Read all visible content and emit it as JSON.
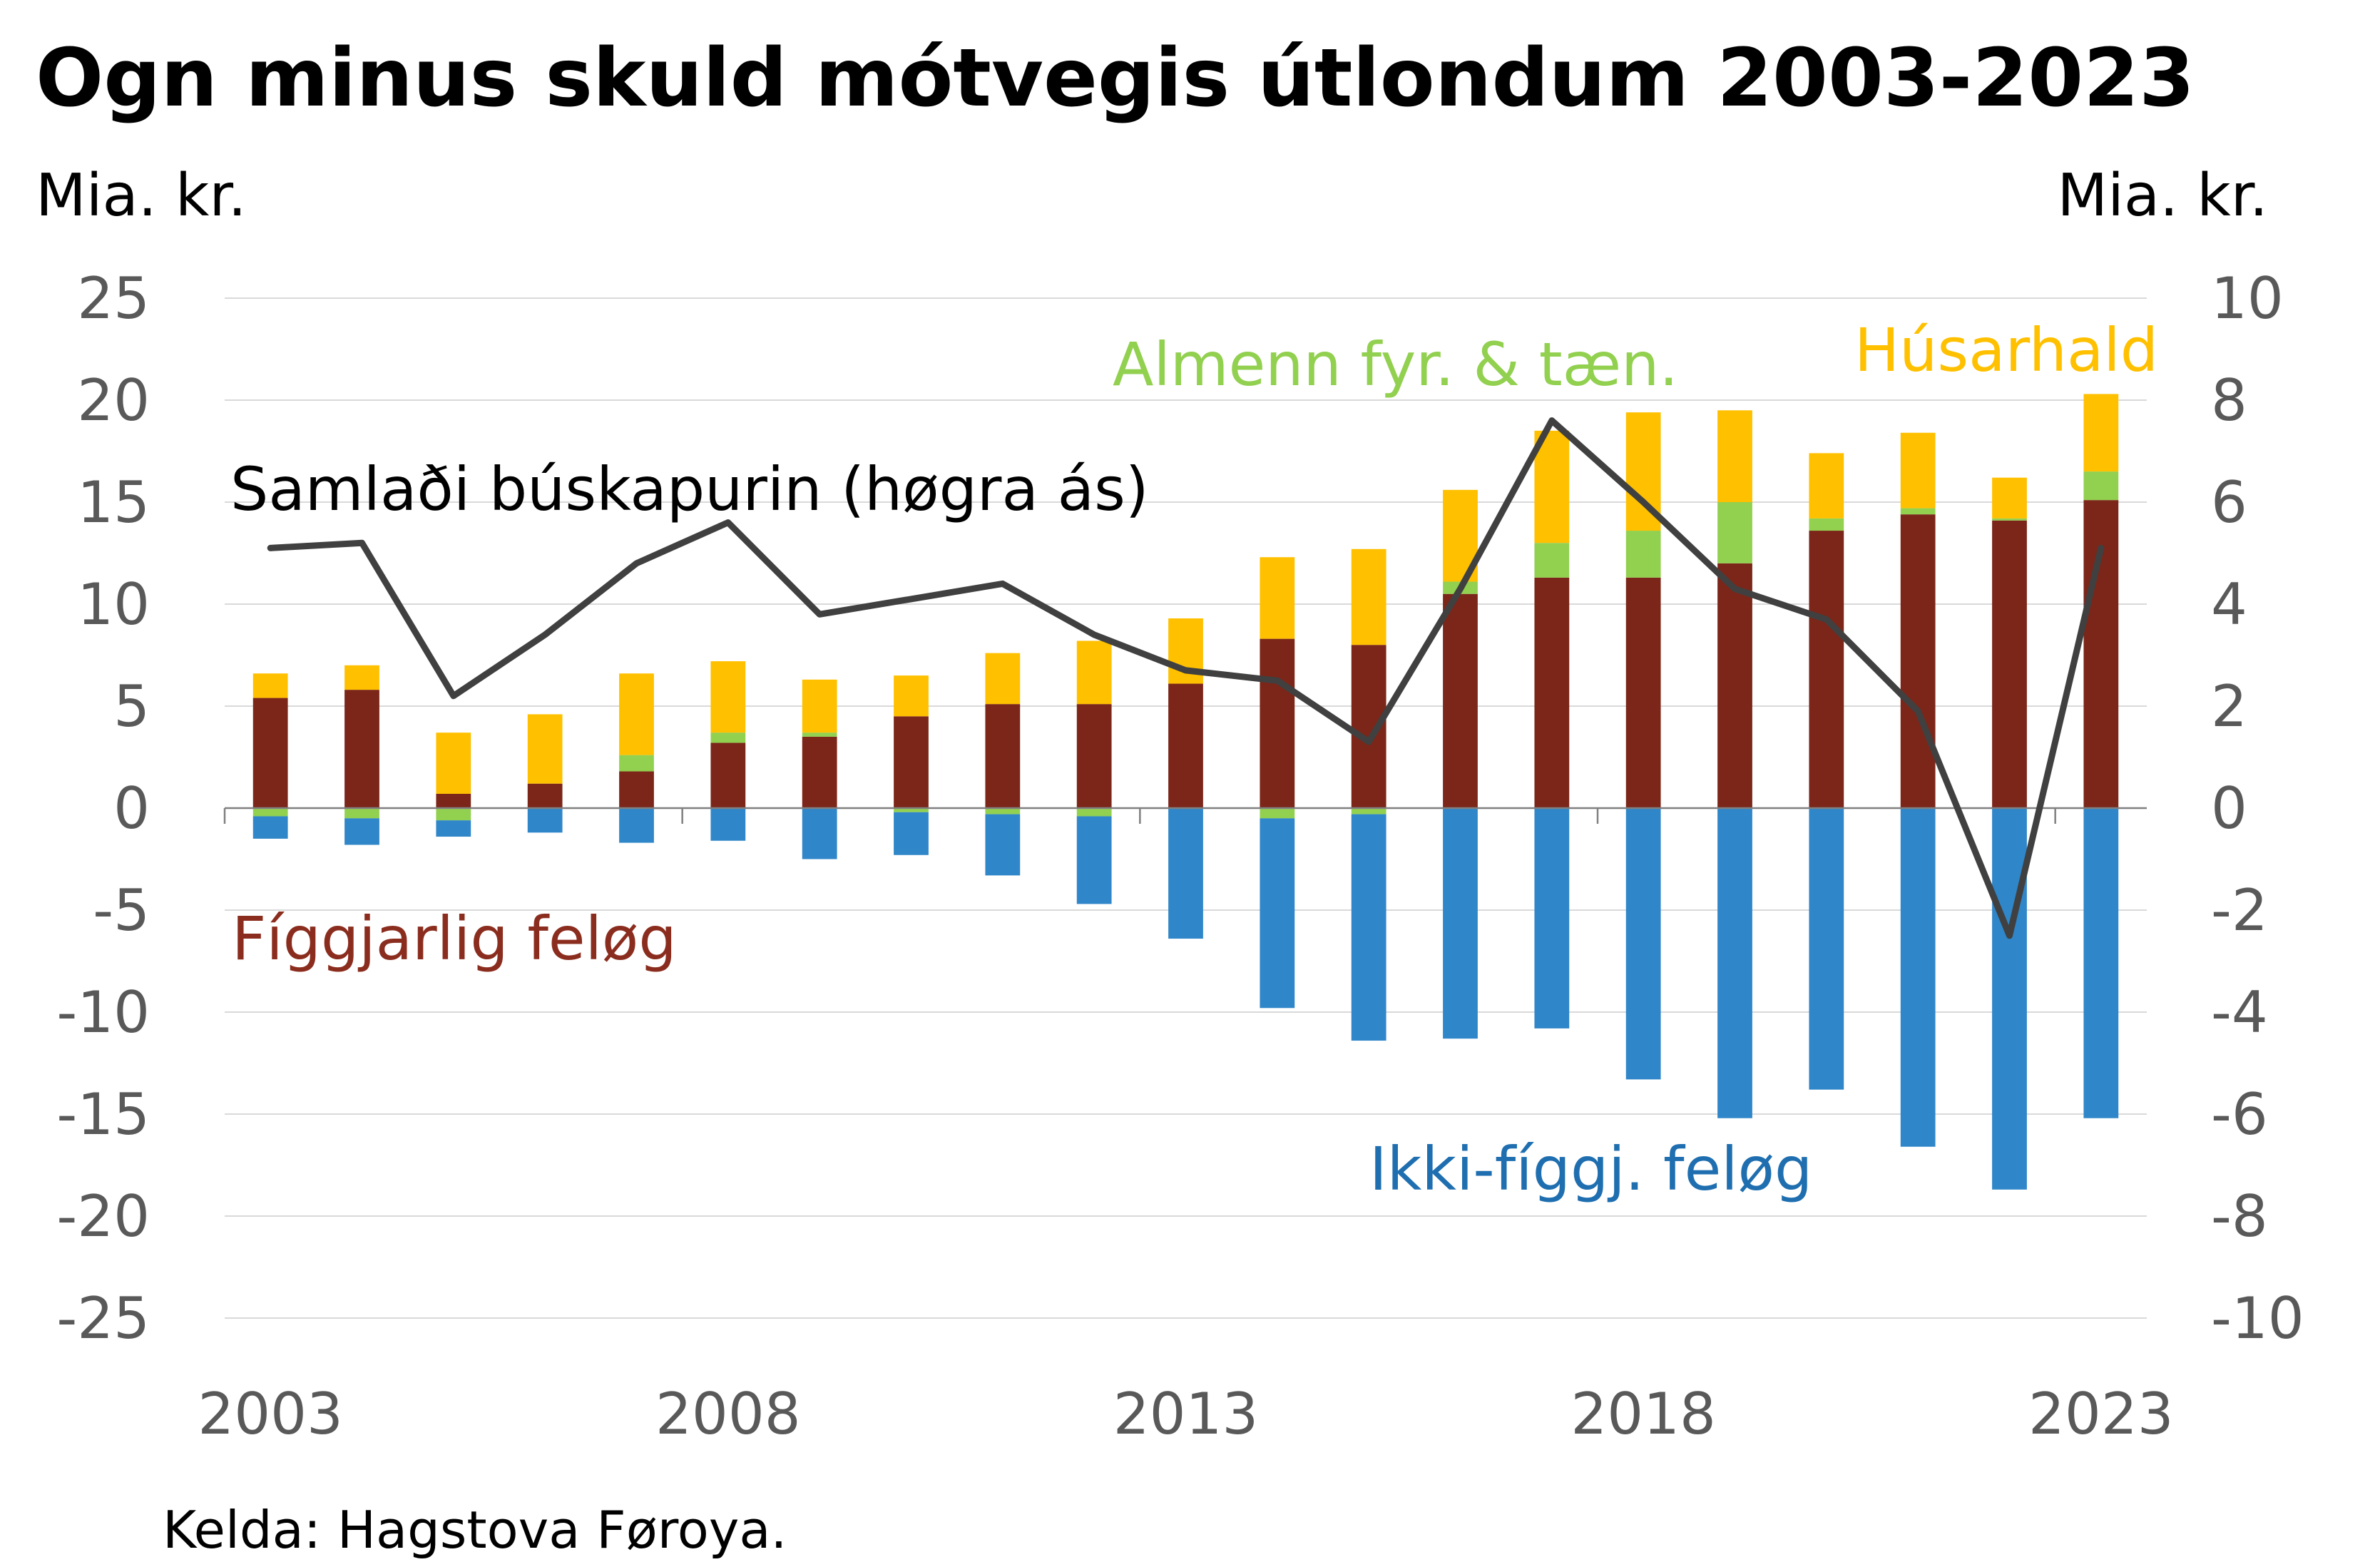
{
  "chart_data": {
    "type": "bar",
    "subtype": "stacked-bar-with-line",
    "title": "Ogn minus skuld mótvegis útlondum 2003-2023",
    "left_unit": "Mia. kr.",
    "right_unit": "Mia. kr.",
    "source": "Kelda: Hagstova Føroya.",
    "grid": true,
    "x": [
      2003,
      2004,
      2005,
      2006,
      2007,
      2008,
      2009,
      2010,
      2011,
      2012,
      2013,
      2014,
      2015,
      2016,
      2017,
      2018,
      2019,
      2020,
      2021,
      2022,
      2023
    ],
    "x_tick_labels": [
      "2003",
      "2008",
      "2013",
      "2018",
      "2023"
    ],
    "ylim": [
      -25,
      25
    ],
    "y_ticks": [
      "25",
      "20",
      "15",
      "10",
      "5",
      "0",
      "-5",
      "-10",
      "-15",
      "-20",
      "-25"
    ],
    "y2lim": [
      -10,
      10
    ],
    "y2_ticks": [
      "10",
      "8",
      "6",
      "4",
      "2",
      "0",
      "-2",
      "-4",
      "-6",
      "-8",
      "-10"
    ],
    "series": [
      {
        "name": "Fíggjarlig feløg",
        "axis": "left",
        "color": "#7B2619",
        "values": [
          5.4,
          5.8,
          0.7,
          1.2,
          1.8,
          3.2,
          3.5,
          4.5,
          5.1,
          5.1,
          6.1,
          8.3,
          8.0,
          10.5,
          11.3,
          11.3,
          12.0,
          13.6,
          14.4,
          14.1,
          15.1
        ]
      },
      {
        "name": "Almenn fyr. & tæn.",
        "axis": "left",
        "color": "#92D050",
        "values": [
          -0.4,
          -0.5,
          -0.6,
          0.0,
          0.8,
          0.5,
          0.2,
          -0.2,
          -0.3,
          -0.4,
          0.0,
          -0.5,
          -0.3,
          0.6,
          1.7,
          2.3,
          3.0,
          0.6,
          0.3,
          0.1,
          1.4
        ]
      },
      {
        "name": "Húsarhald",
        "axis": "left",
        "color": "#FFC000",
        "values": [
          1.2,
          1.2,
          3.0,
          3.4,
          4.0,
          3.5,
          2.6,
          2.0,
          2.5,
          3.1,
          3.2,
          4.0,
          4.7,
          4.5,
          5.5,
          5.8,
          4.5,
          3.2,
          3.7,
          2.0,
          3.8
        ]
      },
      {
        "name": "Ikki-fíggj. feløg",
        "axis": "left",
        "color": "#2F86C8",
        "values": [
          -1.1,
          -1.3,
          -0.8,
          -1.2,
          -1.7,
          -1.6,
          -2.5,
          -2.1,
          -3.0,
          -4.3,
          -6.4,
          -9.3,
          -11.1,
          -11.3,
          -10.8,
          -13.3,
          -15.2,
          -13.8,
          -16.6,
          -18.7,
          -15.2
        ]
      },
      {
        "name": "Samlaði búskapurin (høgra ás)",
        "axis": "right",
        "type": "line",
        "color": "#404040",
        "values": [
          5.1,
          5.2,
          2.2,
          3.4,
          4.8,
          5.6,
          3.8,
          4.1,
          4.4,
          3.4,
          2.7,
          2.5,
          1.3,
          4.3,
          7.6,
          6.0,
          4.3,
          3.7,
          1.9,
          -2.5,
          5.1
        ]
      }
    ]
  }
}
